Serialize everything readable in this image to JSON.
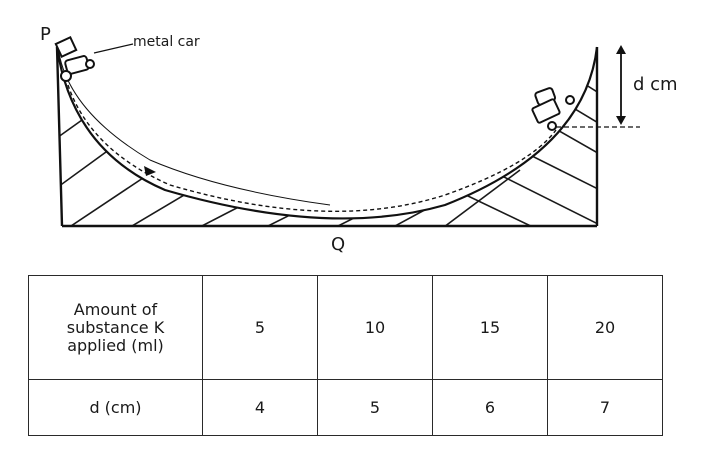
{
  "labels": {
    "point_p": "P",
    "point_q": "Q",
    "car": "metal car",
    "distance": "d cm"
  },
  "table": {
    "row1": {
      "header": "Amount of\nsubstance K\napplied (ml)",
      "values": [
        "5",
        "10",
        "15",
        "20"
      ]
    },
    "row2": {
      "header": "d (cm)",
      "values": [
        "4",
        "5",
        "6",
        "7"
      ]
    }
  }
}
